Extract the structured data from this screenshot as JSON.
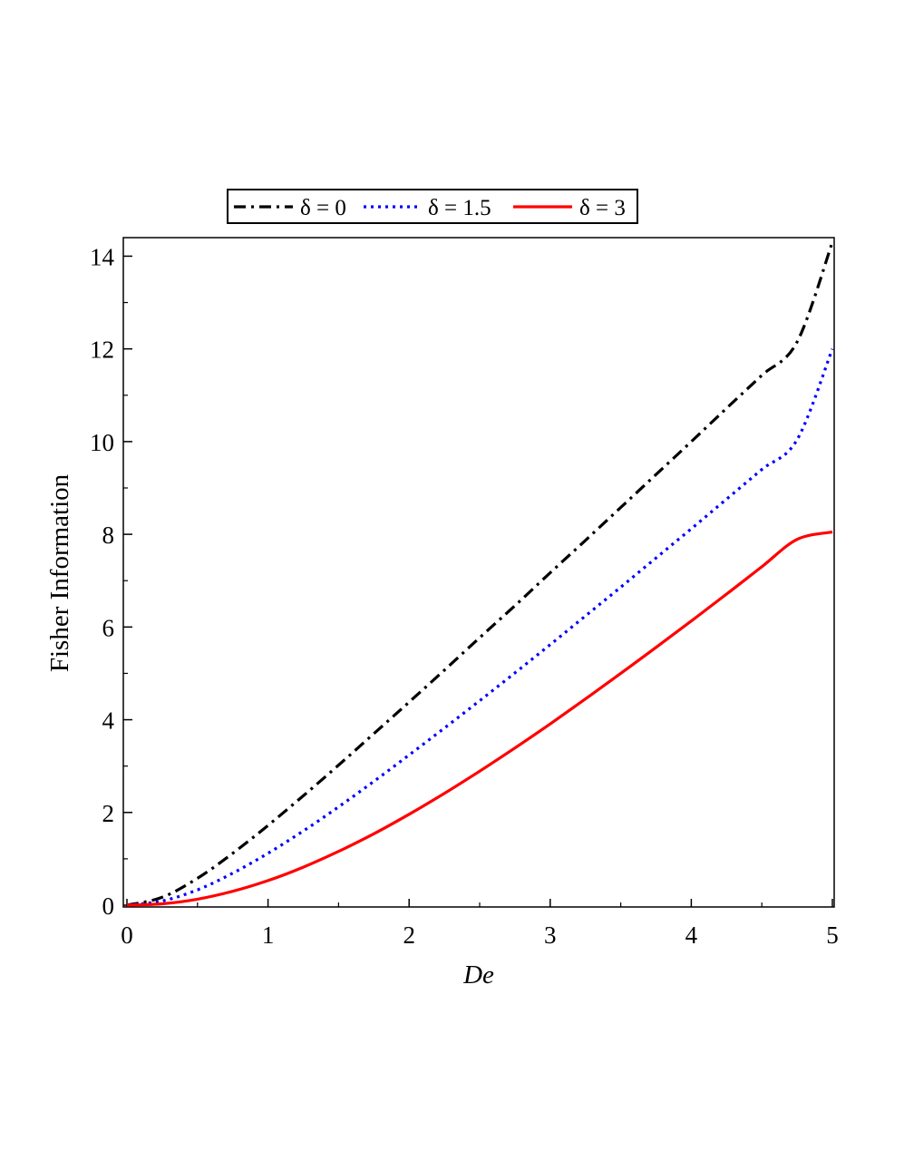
{
  "chart_data": {
    "type": "line",
    "xlabel": "De",
    "ylabel": "Fisher Information",
    "xlim": [
      0,
      5
    ],
    "ylim": [
      0,
      14.4
    ],
    "xticks": [
      0,
      1,
      2,
      3,
      4,
      5
    ],
    "yticks": [
      0,
      2,
      4,
      6,
      8,
      10,
      12,
      14
    ],
    "grid": false,
    "legend_position": "top",
    "series": [
      {
        "name": "δ = 0",
        "color": "#000000",
        "line_style": "dash-dot",
        "x": [
          0,
          0.25,
          0.5,
          0.75,
          1,
          1.25,
          1.5,
          1.75,
          2,
          2.25,
          2.5,
          2.75,
          3,
          3.25,
          3.5,
          3.75,
          4,
          4.25,
          4.5,
          4.75,
          5
        ],
        "y": [
          0,
          0.17,
          0.58,
          1.12,
          1.72,
          2.36,
          3.02,
          3.7,
          4.38,
          5.07,
          5.77,
          6.46,
          7.17,
          7.87,
          8.58,
          9.29,
          10.0,
          10.72,
          11.43,
          12.15,
          14.3
        ]
      },
      {
        "name": "δ = 1.5",
        "color": "#0000ff",
        "line_style": "dotted",
        "x": [
          0,
          0.25,
          0.5,
          0.75,
          1,
          1.25,
          1.5,
          1.75,
          2,
          2.25,
          2.5,
          2.75,
          3,
          3.25,
          3.5,
          3.75,
          4,
          4.25,
          4.5,
          4.75,
          5
        ],
        "y": [
          0,
          0.09,
          0.33,
          0.69,
          1.12,
          1.6,
          2.12,
          2.67,
          3.24,
          3.82,
          4.41,
          5.01,
          5.62,
          6.24,
          6.86,
          7.49,
          8.12,
          8.76,
          9.4,
          10.04,
          12.0
        ]
      },
      {
        "name": "δ = 3",
        "color": "#ff0000",
        "line_style": "solid",
        "x": [
          0,
          0.25,
          0.5,
          0.75,
          1,
          1.25,
          1.5,
          1.75,
          2,
          2.25,
          2.5,
          2.75,
          3,
          3.25,
          3.5,
          3.75,
          4,
          4.25,
          4.5,
          4.75,
          5
        ],
        "y": [
          0,
          0.03,
          0.13,
          0.3,
          0.53,
          0.82,
          1.16,
          1.54,
          1.96,
          2.41,
          2.89,
          3.39,
          3.91,
          4.45,
          5.0,
          5.56,
          6.13,
          6.71,
          7.3,
          7.89,
          8.05
        ]
      }
    ]
  }
}
